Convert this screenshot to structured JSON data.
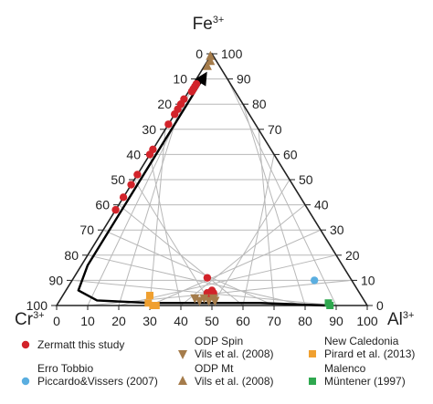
{
  "chart_data": {
    "type": "scatter",
    "subtype": "ternary",
    "vertices": {
      "top": {
        "base": "Fe",
        "sup": "3+"
      },
      "left": {
        "base": "Cr",
        "sup": "3+"
      },
      "right": {
        "base": "Al",
        "sup": "3+"
      }
    },
    "ticks": {
      "left_edge": [
        "0",
        "10",
        "20",
        "30",
        "40",
        "50",
        "60",
        "70",
        "80",
        "90",
        "100"
      ],
      "right_edge": [
        "100",
        "90",
        "80",
        "70",
        "60",
        "50",
        "40",
        "30",
        "20",
        "10",
        "0"
      ],
      "bottom_edge": [
        "0",
        "10",
        "20",
        "30",
        "40",
        "50",
        "60",
        "70",
        "80",
        "90",
        "100"
      ]
    },
    "grid": true,
    "legend_position": "bottom",
    "series": [
      {
        "name": "Zermatt this study",
        "color": "#d2232a",
        "marker": "circle",
        "points": [
          {
            "fe": 88,
            "al": 1
          },
          {
            "fe": 87,
            "al": 1
          },
          {
            "fe": 86,
            "al": 1
          },
          {
            "fe": 85,
            "al": 1
          },
          {
            "fe": 82,
            "al": 0
          },
          {
            "fe": 80,
            "al": 0
          },
          {
            "fe": 78,
            "al": 0
          },
          {
            "fe": 76,
            "al": 0
          },
          {
            "fe": 72,
            "al": 0
          },
          {
            "fe": 62,
            "al": 0
          },
          {
            "fe": 60,
            "al": 0
          },
          {
            "fe": 52,
            "al": 0
          },
          {
            "fe": 48,
            "al": 0
          },
          {
            "fe": 43,
            "al": 0
          },
          {
            "fe": 38,
            "al": 0
          },
          {
            "fe": 11,
            "al": 43
          },
          {
            "fe": 6,
            "al": 47
          },
          {
            "fe": 5,
            "al": 48
          },
          {
            "fe": 4,
            "al": 47
          },
          {
            "fe": 5,
            "al": 46
          }
        ]
      },
      {
        "name": "Erro Tobbio",
        "name2": "Piccardo&Vissers (2007)",
        "color": "#5aaee0",
        "marker": "circle",
        "points": [
          {
            "fe": 10,
            "al": 78
          }
        ]
      },
      {
        "name": "ODP Spin",
        "name2": "Vils et al. (2008)",
        "color": "#a57c4b",
        "marker": "triangle-down",
        "points": [
          {
            "fe": 3,
            "al": 43
          },
          {
            "fe": 2,
            "al": 45
          },
          {
            "fe": 3,
            "al": 46
          },
          {
            "fe": 2,
            "al": 48
          },
          {
            "fe": 3,
            "al": 49
          },
          {
            "fe": 2,
            "al": 50
          }
        ]
      },
      {
        "name": "ODP Mt",
        "name2": "Vils et al. (2008)",
        "color": "#a57c4b",
        "marker": "triangle-up",
        "points": [
          {
            "fe": 99,
            "al": 0
          },
          {
            "fe": 97,
            "al": 1
          },
          {
            "fe": 95,
            "al": 1
          }
        ]
      },
      {
        "name": "New Caledonia",
        "name2": "Pirard et al. (2013)",
        "color": "#f0a030",
        "marker": "square",
        "points": [
          {
            "fe": 4,
            "al": 28
          },
          {
            "fe": 1,
            "al": 29
          },
          {
            "fe": 0,
            "al": 31
          },
          {
            "fe": 0,
            "al": 32
          }
        ]
      },
      {
        "name": "Malenco",
        "name2": "Müntener (1997)",
        "color": "#2fa84f",
        "marker": "square",
        "points": [
          {
            "fe": 0,
            "al": 88
          },
          {
            "fe": 1,
            "al": 87
          }
        ]
      }
    ],
    "trend_arrow": [
      {
        "fe": 0,
        "al": 87
      },
      {
        "fe": 1,
        "al": 65
      },
      {
        "fe": 1,
        "al": 45
      },
      {
        "fe": 1,
        "al": 30
      },
      {
        "fe": 2,
        "al": 12
      },
      {
        "fe": 6,
        "al": 4
      },
      {
        "fe": 16,
        "al": 2
      },
      {
        "fe": 40,
        "al": 2
      },
      {
        "fe": 56,
        "al": 2
      },
      {
        "fe": 80,
        "al": 2
      },
      {
        "fe": 92,
        "al": 2
      }
    ]
  }
}
